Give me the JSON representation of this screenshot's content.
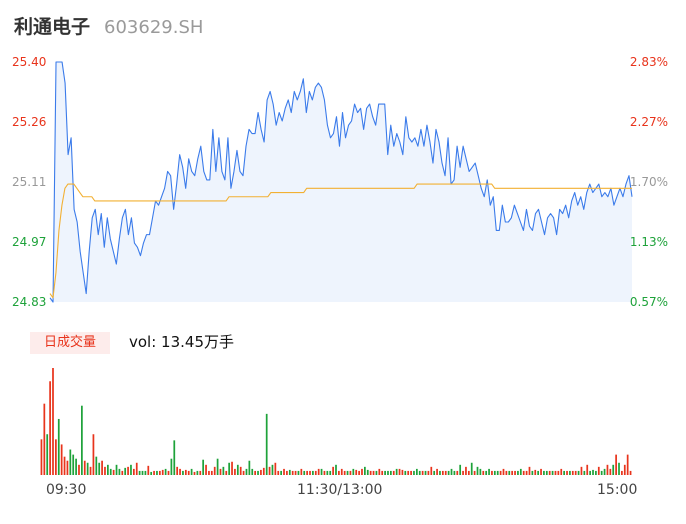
{
  "header": {
    "name": "利通电子",
    "code": "603629.SH"
  },
  "volume": {
    "tag": "日成交量",
    "label": "vol: 13.45万手"
  },
  "colors": {
    "price": "#3b7bea",
    "avg": "#f2b033",
    "up": "#e8341c",
    "down": "#1ea23a",
    "flat": "#999999",
    "area": "#eef4fd"
  },
  "chart_data": [
    {
      "type": "line",
      "title": "",
      "y_ticks_left": [
        "25.40",
        "25.26",
        "25.11",
        "24.97",
        "24.83"
      ],
      "y_ticks_right": [
        "2.83%",
        "2.27%",
        "1.70%",
        "1.13%",
        "0.57%"
      ],
      "x_ticks": [
        "09:30",
        "11:30/13:00",
        "15:00"
      ],
      "ylim": [
        24.83,
        25.4
      ],
      "series": [
        {
          "key": "price",
          "color": "#3b7bea",
          "values": [
            24.84,
            24.83,
            25.4,
            25.4,
            25.4,
            25.35,
            25.18,
            25.22,
            25.05,
            25.02,
            24.95,
            24.9,
            24.85,
            24.95,
            25.03,
            25.05,
            24.99,
            25.04,
            24.96,
            25.03,
            24.98,
            24.95,
            24.92,
            24.98,
            25.03,
            25.05,
            24.99,
            25.03,
            24.97,
            24.96,
            24.94,
            24.97,
            24.99,
            24.99,
            25.03,
            25.07,
            25.06,
            25.08,
            25.1,
            25.14,
            25.13,
            25.05,
            25.11,
            25.18,
            25.15,
            25.1,
            25.17,
            25.14,
            25.13,
            25.17,
            25.2,
            25.14,
            25.12,
            25.12,
            25.24,
            25.14,
            25.22,
            25.14,
            25.12,
            25.22,
            25.1,
            25.14,
            25.19,
            25.14,
            25.13,
            25.2,
            25.24,
            25.23,
            25.23,
            25.28,
            25.24,
            25.21,
            25.31,
            25.33,
            25.3,
            25.25,
            25.28,
            25.26,
            25.29,
            25.31,
            25.28,
            25.33,
            25.31,
            25.33,
            25.36,
            25.28,
            25.33,
            25.31,
            25.34,
            25.35,
            25.34,
            25.31,
            25.25,
            25.22,
            25.23,
            25.27,
            25.2,
            25.28,
            25.22,
            25.25,
            25.26,
            25.3,
            25.28,
            25.29,
            25.24,
            25.29,
            25.3,
            25.27,
            25.25,
            25.3,
            25.3,
            25.3,
            25.18,
            25.25,
            25.2,
            25.23,
            25.21,
            25.18,
            25.27,
            25.22,
            25.21,
            25.22,
            25.2,
            25.24,
            25.2,
            25.25,
            25.21,
            25.16,
            25.24,
            25.21,
            25.16,
            25.13,
            25.22,
            25.11,
            25.12,
            25.2,
            25.15,
            25.2,
            25.17,
            25.14,
            25.15,
            25.16,
            25.13,
            25.1,
            25.08,
            25.12,
            25.06,
            25.08,
            25.0,
            25.0,
            25.06,
            25.02,
            25.02,
            25.03,
            25.06,
            25.04,
            25.02,
            25.0,
            25.05,
            25.01,
            25.0,
            25.04,
            25.05,
            25.02,
            24.99,
            25.03,
            25.04,
            25.03,
            24.99,
            25.05,
            25.04,
            25.06,
            25.03,
            25.07,
            25.09,
            25.06,
            25.08,
            25.05,
            25.09,
            25.11,
            25.09,
            25.1,
            25.11,
            25.08,
            25.09,
            25.08,
            25.1,
            25.06,
            25.08,
            25.1,
            25.08,
            25.11,
            25.13,
            25.08
          ]
        },
        {
          "key": "avg",
          "color": "#f2b033",
          "values": [
            24.85,
            24.84,
            24.9,
            25.0,
            25.06,
            25.1,
            25.11,
            25.11,
            25.11,
            25.1,
            25.09,
            25.08,
            25.08,
            25.08,
            25.08,
            25.07,
            25.07,
            25.07,
            25.07,
            25.07,
            25.07,
            25.07,
            25.07,
            25.07,
            25.07,
            25.07,
            25.07,
            25.07,
            25.07,
            25.07,
            25.07,
            25.07,
            25.07,
            25.07,
            25.07,
            25.07,
            25.07,
            25.07,
            25.07,
            25.07,
            25.07,
            25.07,
            25.07,
            25.07,
            25.07,
            25.07,
            25.07,
            25.07,
            25.07,
            25.07,
            25.07,
            25.07,
            25.07,
            25.07,
            25.07,
            25.07,
            25.07,
            25.07,
            25.07,
            25.07,
            25.08,
            25.08,
            25.08,
            25.08,
            25.08,
            25.08,
            25.08,
            25.08,
            25.08,
            25.08,
            25.08,
            25.08,
            25.08,
            25.08,
            25.09,
            25.09,
            25.09,
            25.09,
            25.09,
            25.09,
            25.09,
            25.09,
            25.09,
            25.09,
            25.09,
            25.09,
            25.1,
            25.1,
            25.1,
            25.1,
            25.1,
            25.1,
            25.1,
            25.1,
            25.1,
            25.1,
            25.1,
            25.1,
            25.1,
            25.1,
            25.1,
            25.1,
            25.1,
            25.1,
            25.1,
            25.1,
            25.1,
            25.1,
            25.1,
            25.1,
            25.1,
            25.1,
            25.1,
            25.1,
            25.1,
            25.1,
            25.1,
            25.1,
            25.1,
            25.1,
            25.1,
            25.1,
            25.1,
            25.11,
            25.11,
            25.11,
            25.11,
            25.11,
            25.11,
            25.11,
            25.11,
            25.11,
            25.11,
            25.11,
            25.11,
            25.11,
            25.11,
            25.11,
            25.11,
            25.11,
            25.11,
            25.11,
            25.11,
            25.11,
            25.11,
            25.11,
            25.11,
            25.11,
            25.11,
            25.1,
            25.1,
            25.1,
            25.1,
            25.1,
            25.1,
            25.1,
            25.1,
            25.1,
            25.1,
            25.1,
            25.1,
            25.1,
            25.1,
            25.1,
            25.1,
            25.1,
            25.1,
            25.1,
            25.1,
            25.1,
            25.1,
            25.1,
            25.1,
            25.1,
            25.1,
            25.1,
            25.1,
            25.1,
            25.1,
            25.1,
            25.1,
            25.1,
            25.1,
            25.1,
            25.1,
            25.1,
            25.1,
            25.1,
            25.1,
            25.1,
            25.1,
            25.1,
            25.1,
            25.1,
            25.1,
            25.1
          ]
        }
      ]
    },
    {
      "type": "bar",
      "title": "",
      "series_name": "vol",
      "values": [
        35,
        70,
        40,
        92,
        105,
        35,
        55,
        30,
        18,
        14,
        25,
        20,
        16,
        10,
        68,
        14,
        12,
        8,
        40,
        18,
        12,
        14,
        8,
        10,
        6,
        5,
        10,
        6,
        4,
        7,
        8,
        10,
        6,
        12,
        4,
        4,
        4,
        9,
        3,
        4,
        4,
        4,
        5,
        6,
        4,
        16,
        34,
        8,
        6,
        4,
        5,
        4,
        6,
        3,
        4,
        4,
        15,
        10,
        4,
        4,
        8,
        16,
        6,
        8,
        4,
        12,
        13,
        6,
        10,
        8,
        4,
        6,
        14,
        6,
        4,
        4,
        5,
        7,
        60,
        8,
        10,
        12,
        4,
        4,
        6,
        4,
        5,
        4,
        4,
        4,
        6,
        4,
        4,
        4,
        4,
        4,
        6,
        6,
        4,
        4,
        4,
        8,
        10,
        4,
        6,
        4,
        4,
        4,
        6,
        5,
        4,
        6,
        8,
        5,
        4,
        4,
        4,
        6,
        4,
        4,
        4,
        4,
        4,
        6,
        6,
        5,
        4,
        4,
        4,
        4,
        6,
        4,
        4,
        4,
        4,
        8,
        4,
        6,
        4,
        4,
        4,
        4,
        6,
        4,
        4,
        10,
        4,
        8,
        4,
        12,
        4,
        8,
        6,
        4,
        4,
        6,
        4,
        4,
        4,
        4,
        6,
        4,
        4,
        4,
        4,
        4,
        6,
        4,
        4,
        8,
        4,
        5,
        4,
        6,
        4,
        4,
        4,
        4,
        4,
        4,
        6,
        4,
        4,
        4,
        4,
        4,
        4,
        8,
        4,
        10,
        4,
        5,
        4,
        8,
        4,
        6,
        10,
        6,
        10,
        20,
        12,
        4,
        10,
        20,
        4
      ],
      "dirs": [
        "u",
        "u",
        "d",
        "u",
        "u",
        "u",
        "d",
        "u",
        "u",
        "u",
        "d",
        "d",
        "d",
        "u",
        "d",
        "u",
        "d",
        "u",
        "u",
        "d",
        "d",
        "u",
        "u",
        "d",
        "d",
        "u",
        "d",
        "d",
        "u",
        "d",
        "u",
        "d",
        "u",
        "u",
        "d",
        "d",
        "d",
        "u",
        "d",
        "u",
        "d",
        "u",
        "u",
        "d",
        "u",
        "d",
        "d",
        "u",
        "u",
        "d",
        "u",
        "u",
        "d",
        "u",
        "d",
        "u",
        "d",
        "u",
        "u",
        "u",
        "u",
        "d",
        "u",
        "d",
        "u",
        "d",
        "u",
        "u",
        "d",
        "u",
        "u",
        "d",
        "d",
        "d",
        "u",
        "d",
        "u",
        "u",
        "d",
        "u",
        "d",
        "u",
        "u",
        "d",
        "u",
        "u",
        "d",
        "u",
        "u",
        "d",
        "u",
        "d",
        "u",
        "u",
        "d",
        "u",
        "u",
        "d",
        "u",
        "d",
        "d",
        "u",
        "d",
        "u",
        "u",
        "u",
        "d",
        "u",
        "d",
        "u",
        "u",
        "u",
        "d",
        "d",
        "u",
        "u",
        "d",
        "u",
        "u",
        "d",
        "d",
        "d",
        "u",
        "d",
        "u",
        "u",
        "d",
        "u",
        "u",
        "d",
        "d",
        "d",
        "u",
        "d",
        "u",
        "u",
        "d",
        "u",
        "d",
        "u",
        "u",
        "d",
        "d",
        "d",
        "u",
        "d",
        "u",
        "u",
        "u",
        "d",
        "u",
        "d",
        "d",
        "u",
        "d",
        "d",
        "u",
        "d",
        "d",
        "u",
        "u",
        "u",
        "d",
        "u",
        "u",
        "d",
        "d",
        "u",
        "u",
        "u",
        "d",
        "u",
        "d",
        "u",
        "d",
        "d",
        "u",
        "d",
        "u",
        "u",
        "u",
        "d",
        "u",
        "d",
        "u",
        "u",
        "d",
        "u",
        "d",
        "u",
        "d",
        "d",
        "d",
        "u",
        "d",
        "d",
        "u",
        "u",
        "d",
        "u",
        "d",
        "u",
        "u",
        "u",
        "u",
        "d",
        "u",
        "u",
        "d",
        "u",
        "d",
        "u",
        "u"
      ]
    }
  ]
}
